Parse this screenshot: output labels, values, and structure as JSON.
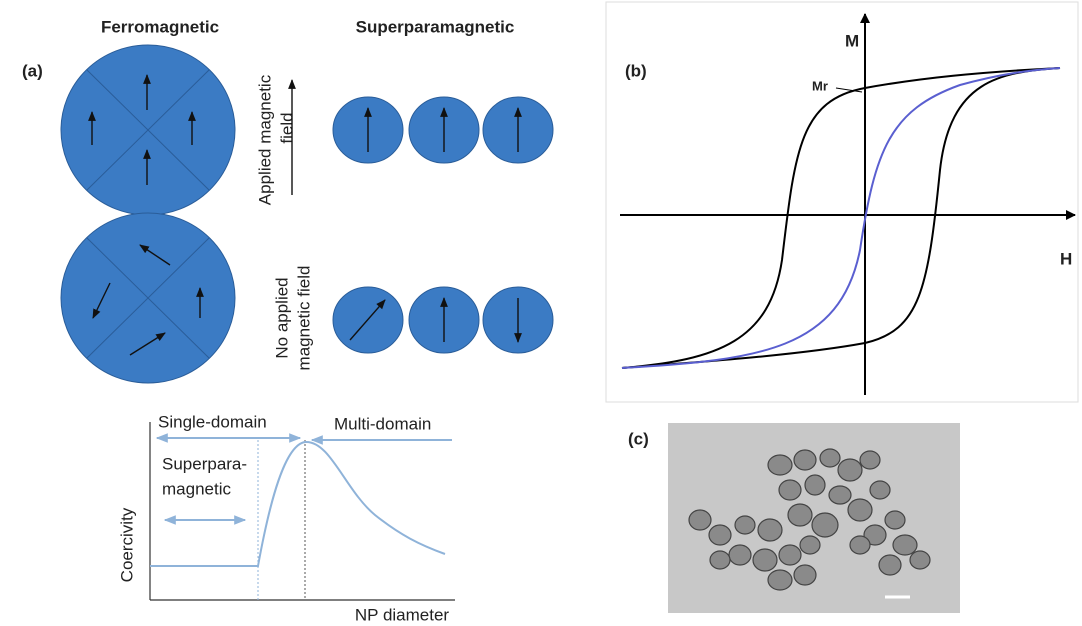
{
  "panel_a": {
    "label": "(a)",
    "ferromagnetic_heading": "Ferromagnetic",
    "superparamagnetic_heading": "Superparamagnetic",
    "applied_field_label": [
      "Applied magnetic",
      "field"
    ],
    "no_field_label": [
      "No applied",
      "magnetic field"
    ],
    "coercivity_plot": {
      "y_label": "Coercivity",
      "x_label": "NP diameter",
      "single_domain": "Single-domain",
      "multi_domain": "Multi-domain",
      "superparamagnetic": [
        "Superpara-",
        "magnetic"
      ]
    }
  },
  "panel_b": {
    "label": "(b)",
    "y_axis": "M",
    "x_axis": "H",
    "remanence": "Mr"
  },
  "panel_c": {
    "label": "(c)"
  }
}
